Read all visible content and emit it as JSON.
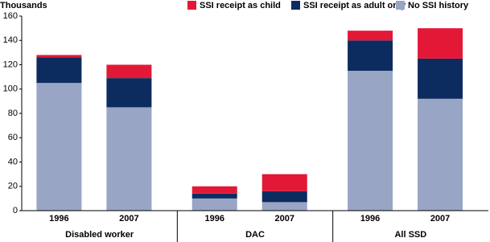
{
  "chart_data": {
    "type": "stacked_bar",
    "y_label": "Thousands",
    "groups": [
      {
        "name": "Disabled worker",
        "categories": [
          "1996",
          "2007"
        ]
      },
      {
        "name": "DAC",
        "categories": [
          "1996",
          "2007"
        ]
      },
      {
        "name": "All SSD",
        "categories": [
          "1996",
          "2007"
        ]
      }
    ],
    "series": [
      {
        "name": "No SSI history",
        "color": "#98a5c4",
        "values": [
          105,
          85,
          10,
          7,
          115,
          92
        ]
      },
      {
        "name": "SSI receipt as adult only",
        "color": "#0c2c5f",
        "values": [
          21,
          24,
          4,
          9,
          25,
          33
        ]
      },
      {
        "name": "SSI receipt as child",
        "color": "#e31837",
        "values": [
          2,
          11,
          6,
          14,
          8,
          25
        ]
      }
    ],
    "legend_order": [
      2,
      1,
      0
    ],
    "ylim": [
      0,
      160
    ],
    "yticks": [
      0,
      20,
      40,
      60,
      80,
      100,
      120,
      140,
      160
    ],
    "grid": false
  }
}
